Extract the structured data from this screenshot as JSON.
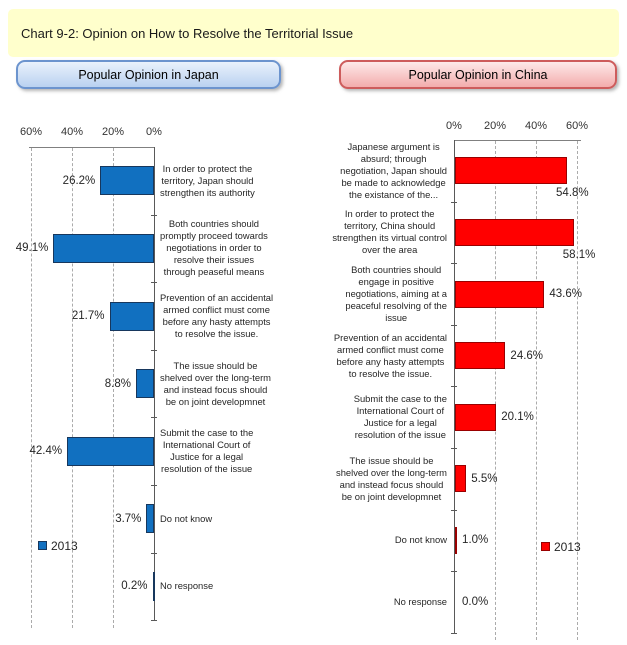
{
  "title": "Chart 9-2: Opinion on How to Resolve the Territorial Issue",
  "buttons": {
    "japan": "Popular Opinion in Japan",
    "china": "Popular Opinion in China"
  },
  "chart_data": [
    {
      "type": "bar",
      "orientation": "horizontal",
      "title": "Popular Opinion in Japan",
      "legend": "2013",
      "bar_color": "#1170C0",
      "bar_border_color": "#17375D",
      "xlim": [
        0,
        60
      ],
      "x_reversed": true,
      "grid": true,
      "axis_ticks": [
        {
          "label": "60%",
          "value": 60
        },
        {
          "label": "40%",
          "value": 40
        },
        {
          "label": "20%",
          "value": 20
        },
        {
          "label": "0%",
          "value": 0
        }
      ],
      "categories": [
        "In order to protect the\nterritory, Japan should\nstrengthen its authority",
        "Both countries should\npromptly proceed towards\nnegotiations in order to\nresolve their issues\nthrough peaseful means",
        "Prevention of an accidental\narmed conflict must come\nbefore any hasty attempts\nto resolve the issue.",
        "The issue should be\nshelved over the long-term\nand instead focus should\nbe on joint developmnet",
        "Submit the case to the\nInternational Court of\nJustice for a legal\nresolution of the issue",
        "Do not know",
        "No response"
      ],
      "values": [
        26.2,
        49.1,
        21.7,
        8.8,
        42.4,
        3.7,
        0.2
      ],
      "value_labels": [
        "26.2%",
        "49.1%",
        "21.7%",
        "8.8%",
        "42.4%",
        "3.7%",
        "0.2%"
      ]
    },
    {
      "type": "bar",
      "orientation": "horizontal",
      "title": "Popular Opinion in China",
      "legend": "2013",
      "bar_color": "#FF0000",
      "bar_border_color": "#990000",
      "xlim": [
        0,
        60
      ],
      "x_reversed": false,
      "grid": true,
      "axis_ticks": [
        {
          "label": "0%",
          "value": 0
        },
        {
          "label": "20%",
          "value": 20
        },
        {
          "label": "40%",
          "value": 40
        },
        {
          "label": "60%",
          "value": 60
        }
      ],
      "categories": [
        "Japanese argument is\nabsurd; through\nnegotiation, Japan should\nbe made to acknowledge\nthe existance of the...",
        "In order to protect the\nterritory, China should\nstrengthen its virtual control\nover the area",
        "Both countries should\nengage in positive\nnegotiations, aiming at a\npeaceful resolving of the\nissue",
        "Prevention of an accidental\narmed conflict must come\nbefore any hasty attempts\nto resolve the issue.",
        "Submit the case to the\nInternational Court of\nJustice for a legal\nresolution of the issue",
        "The issue should be\nshelved over the long-term\nand instead focus should\nbe on joint developmnet",
        "Do not know",
        "No response"
      ],
      "values": [
        54.8,
        58.1,
        43.6,
        24.6,
        20.1,
        5.5,
        1.0,
        0.0
      ],
      "value_labels": [
        "54.8%",
        "58.1%",
        "43.6%",
        "24.6%",
        "20.1%",
        "5.5%",
        "1.0%",
        "0.0%"
      ]
    }
  ]
}
